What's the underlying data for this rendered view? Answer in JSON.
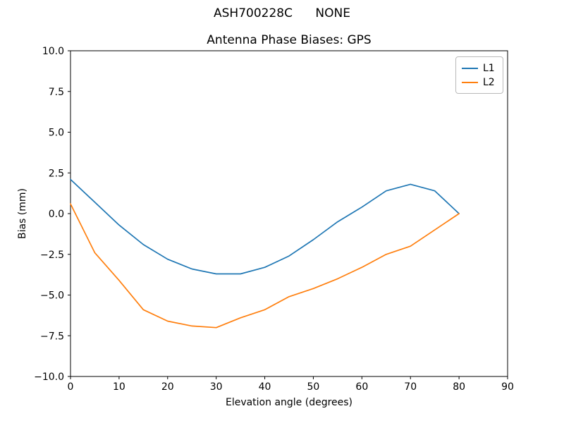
{
  "figure": {
    "suptitle": "ASH700228C      NONE"
  },
  "chart_data": {
    "type": "line",
    "title": "Antenna Phase Biases: GPS",
    "xlabel": "Elevation angle (degrees)",
    "ylabel": "Bias (mm)",
    "xlim": [
      0,
      90
    ],
    "ylim": [
      -10,
      10
    ],
    "grid": false,
    "legend_position": "upper right",
    "axis_color": "#000000",
    "background": "#ffffff",
    "x_ticks": {
      "values": [
        0,
        10,
        20,
        30,
        40,
        50,
        60,
        70,
        80,
        90
      ],
      "labels": [
        "0",
        "10",
        "20",
        "30",
        "40",
        "50",
        "60",
        "70",
        "80",
        "90"
      ]
    },
    "y_ticks": {
      "values": [
        -10,
        -7.5,
        -5,
        -2.5,
        0,
        2.5,
        5,
        7.5,
        10
      ],
      "labels": [
        "−10.0",
        "−7.5",
        "−5.0",
        "−2.5",
        "0.0",
        "2.5",
        "5.0",
        "7.5",
        "10.0"
      ]
    },
    "x": [
      0,
      5,
      10,
      15,
      20,
      25,
      30,
      35,
      40,
      45,
      50,
      55,
      60,
      65,
      70,
      75,
      80
    ],
    "series": [
      {
        "name": "L1",
        "color": "#1f77b4",
        "values": [
          2.1,
          0.7,
          -0.7,
          -1.9,
          -2.8,
          -3.4,
          -3.7,
          -3.7,
          -3.3,
          -2.6,
          -1.6,
          -0.5,
          0.4,
          1.4,
          1.8,
          1.4,
          0.0
        ]
      },
      {
        "name": "L2",
        "color": "#ff7f0e",
        "values": [
          0.6,
          -2.4,
          -4.1,
          -5.9,
          -6.6,
          -6.9,
          -7.0,
          -6.4,
          -5.9,
          -5.1,
          -4.6,
          -4.0,
          -3.3,
          -2.5,
          -2.0,
          -1.0,
          0.0
        ]
      }
    ]
  }
}
